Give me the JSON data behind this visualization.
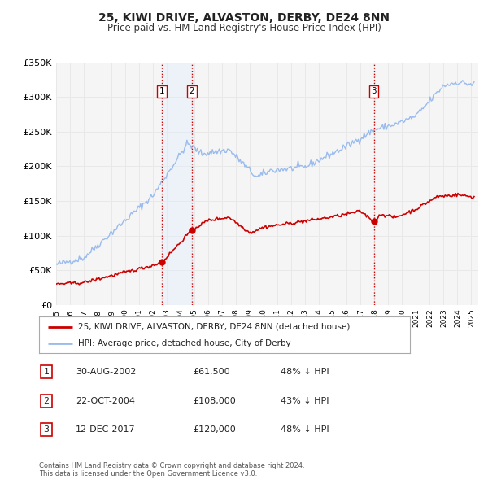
{
  "title": "25, KIWI DRIVE, ALVASTON, DERBY, DE24 8NN",
  "subtitle": "Price paid vs. HM Land Registry's House Price Index (HPI)",
  "ylim": [
    0,
    350000
  ],
  "yticks": [
    0,
    50000,
    100000,
    150000,
    200000,
    250000,
    300000,
    350000
  ],
  "ytick_labels": [
    "£0",
    "£50K",
    "£100K",
    "£150K",
    "£200K",
    "£250K",
    "£300K",
    "£350K"
  ],
  "background_color": "#ffffff",
  "plot_bg_color": "#f5f5f5",
  "grid_color": "#e8e8e8",
  "red_line_color": "#cc0000",
  "blue_line_color": "#99bbee",
  "vline_color": "#cc0000",
  "vline_shade_color": "#ddeeff",
  "sale_dates": [
    2002.66,
    2004.81,
    2017.95
  ],
  "sale_values": [
    61500,
    108000,
    120000
  ],
  "sale_labels": [
    "1",
    "2",
    "3"
  ],
  "legend_red_label": "25, KIWI DRIVE, ALVASTON, DERBY, DE24 8NN (detached house)",
  "legend_blue_label": "HPI: Average price, detached house, City of Derby",
  "table_rows": [
    {
      "num": "1",
      "date": "30-AUG-2002",
      "price": "£61,500",
      "pct": "48% ↓ HPI"
    },
    {
      "num": "2",
      "date": "22-OCT-2004",
      "price": "£108,000",
      "pct": "43% ↓ HPI"
    },
    {
      "num": "3",
      "date": "12-DEC-2017",
      "price": "£120,000",
      "pct": "48% ↓ HPI"
    }
  ],
  "footnote": "Contains HM Land Registry data © Crown copyright and database right 2024.\nThis data is licensed under the Open Government Licence v3.0.",
  "xmin": 1995.0,
  "xmax": 2025.5
}
